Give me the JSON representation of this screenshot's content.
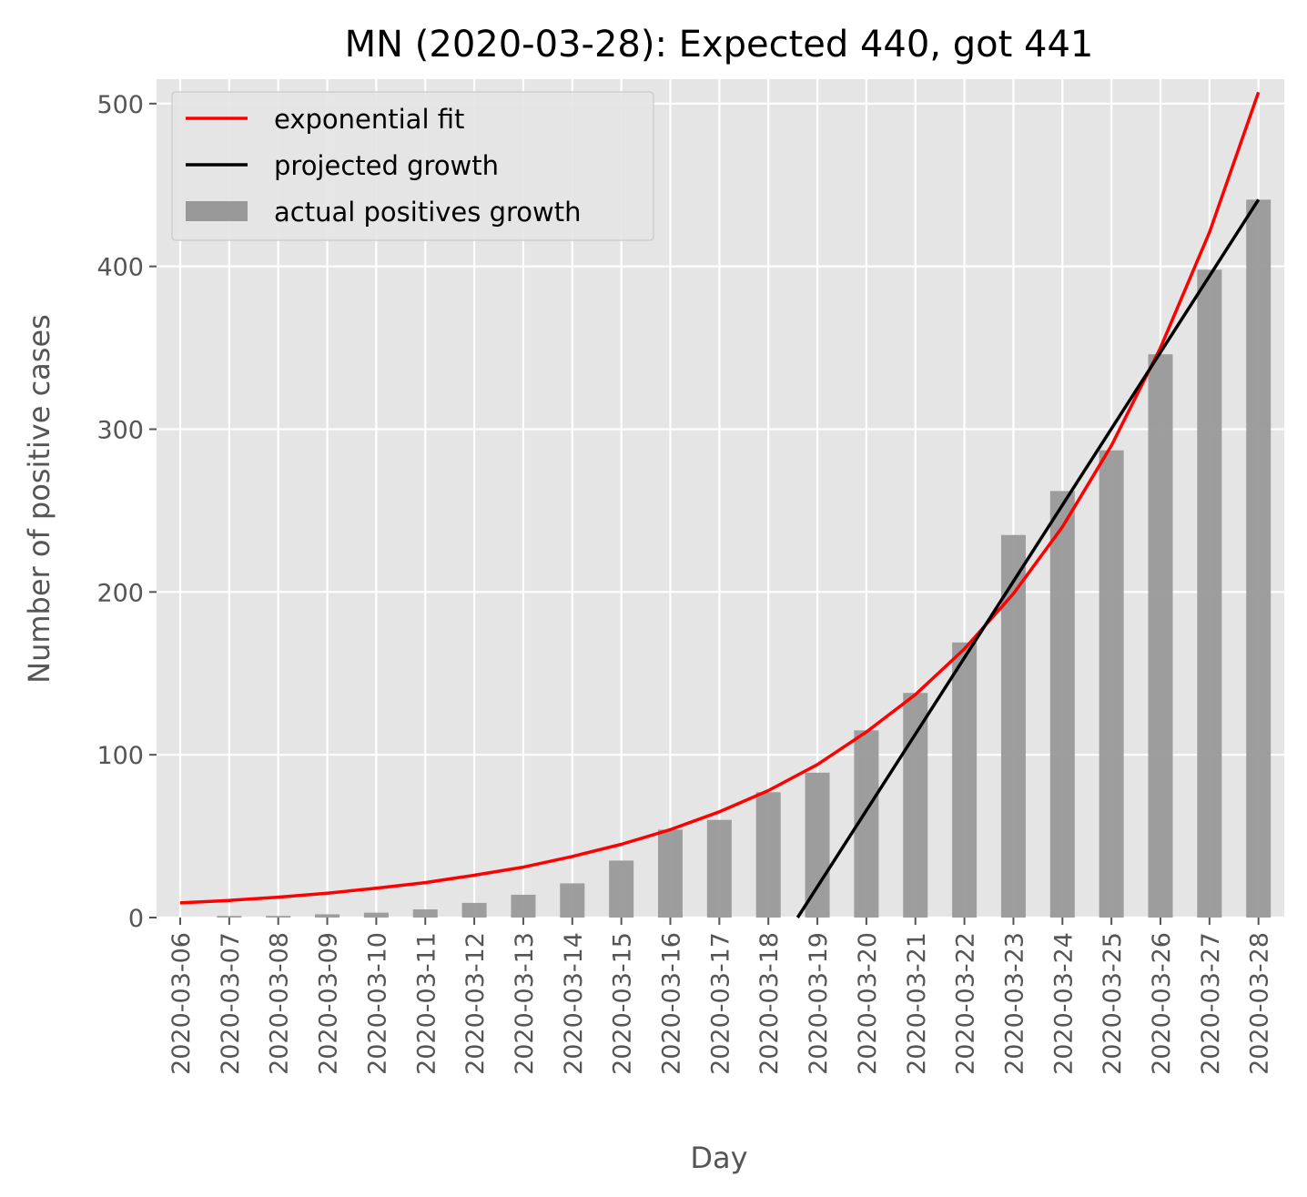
{
  "chart_data": {
    "type": "bar",
    "title": "MN (2020-03-28): Expected 440, got 441",
    "xlabel": "Day",
    "ylabel": "Number of positive cases",
    "ylim": [
      0,
      515
    ],
    "yticks": [
      0,
      100,
      200,
      300,
      400,
      500
    ],
    "grid": true,
    "legend_position": "top-left",
    "categories": [
      "2020-03-06",
      "2020-03-07",
      "2020-03-08",
      "2020-03-09",
      "2020-03-10",
      "2020-03-11",
      "2020-03-12",
      "2020-03-13",
      "2020-03-14",
      "2020-03-15",
      "2020-03-16",
      "2020-03-17",
      "2020-03-18",
      "2020-03-19",
      "2020-03-20",
      "2020-03-21",
      "2020-03-22",
      "2020-03-23",
      "2020-03-24",
      "2020-03-25",
      "2020-03-26",
      "2020-03-27",
      "2020-03-28"
    ],
    "series": [
      {
        "name": "actual positives growth",
        "kind": "bar",
        "color": "#999999",
        "values": [
          0,
          1,
          1,
          2,
          3,
          5,
          9,
          14,
          21,
          35,
          54,
          60,
          77,
          89,
          115,
          138,
          169,
          235,
          262,
          287,
          346,
          398,
          441
        ]
      },
      {
        "name": "exponential fit",
        "kind": "line",
        "color": "#ff0000",
        "values": [
          9,
          10.5,
          12.5,
          15,
          18,
          21.5,
          26,
          31,
          37.5,
          45,
          54,
          65,
          78,
          94,
          114,
          137,
          165,
          199,
          240,
          290,
          350,
          421,
          507
        ]
      },
      {
        "name": "projected growth",
        "kind": "line",
        "color": "#000000",
        "x_start": "2020-03-18",
        "x_end": "2020-03-28",
        "values_at_ends": [
          -28,
          441
        ],
        "visible_from_y": 0
      }
    ]
  }
}
